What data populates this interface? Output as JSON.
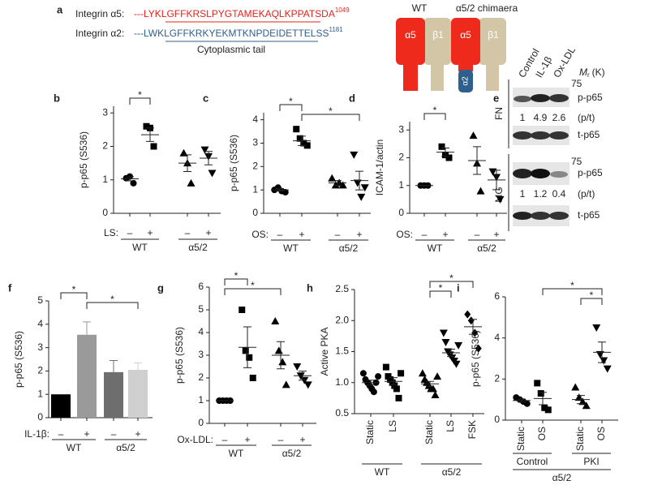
{
  "panel_a": {
    "letter": "a",
    "rows": [
      {
        "label": "Integrin α5:",
        "sequence": "---LYKLGFFKRSLPYGTAMEKAQLKPPATSDA",
        "position": 1049,
        "color": "#e3231b"
      },
      {
        "label": "Integrin α2:",
        "sequence": "---LWKLGFFKRKYEKMTKNPDEIDETTELSS",
        "position": 1181,
        "color": "#2e5f8f"
      }
    ],
    "tail_label": "Cytoplasmic tail",
    "diagrams": [
      {
        "title": "WT",
        "subunits": [
          "α5",
          "β1"
        ]
      },
      {
        "title": "α5/2 chimaera",
        "subunits": [
          "α5",
          "β1",
          "α2"
        ]
      }
    ]
  },
  "panel_e": {
    "letter": "e",
    "headers": [
      "Control",
      "IL-1β",
      "Ox-LDL"
    ],
    "mr": {
      "m": "M",
      "sub": "r",
      "unit": "(K)"
    },
    "sections": [
      {
        "label": "FN",
        "marker": 75,
        "top": "p-p65",
        "ratios": [
          1,
          4.9,
          2.6
        ],
        "ratio_label": "(p/t)",
        "bottom": "t-p65"
      },
      {
        "label": "MG",
        "marker": 75,
        "top": "p-p65",
        "ratios": [
          1,
          1.2,
          0.4
        ],
        "ratio_label": "(p/t)",
        "bottom": "t-p65"
      }
    ]
  },
  "chart_data": [
    {
      "panel": "b",
      "type": "scatter",
      "y_label": "p-p65 (S536)",
      "ylim": [
        0,
        3.2
      ],
      "yticks": [
        0,
        1,
        2,
        3
      ],
      "x_label": "LS:",
      "categories": [
        "–",
        "+",
        "–",
        "+"
      ],
      "groups": [
        {
          "label": "WT",
          "span": [
            0,
            1
          ]
        },
        {
          "label": "α5/2",
          "span": [
            2,
            3
          ]
        }
      ],
      "markers": [
        "circle",
        "square",
        "triangle",
        "triangle-down"
      ],
      "points": [
        [
          1.05,
          1.1,
          0.9
        ],
        [
          2.6,
          2.55,
          2.0
        ],
        [
          1.8,
          1.5,
          0.9
        ],
        [
          1.9,
          1.7,
          1.2
        ]
      ],
      "means": [
        1.03,
        2.35,
        1.5,
        1.65
      ],
      "errors": [
        0.06,
        0.2,
        0.25,
        0.2
      ],
      "significance": [
        {
          "pair": [
            0,
            1
          ],
          "label": "*"
        }
      ]
    },
    {
      "panel": "c",
      "type": "scatter",
      "y_label": "p-p65 (S536)",
      "ylim": [
        0,
        4.3
      ],
      "yticks": [
        0,
        1,
        2,
        3,
        4
      ],
      "x_label": "OS:",
      "categories": [
        "–",
        "+",
        "–",
        "+"
      ],
      "groups": [
        {
          "label": "WT",
          "span": [
            0,
            1
          ]
        },
        {
          "label": "α5/2",
          "span": [
            2,
            3
          ]
        }
      ],
      "markers": [
        "circle",
        "square",
        "triangle",
        "triangle-down"
      ],
      "points": [
        [
          1.0,
          1.1,
          0.95,
          0.9
        ],
        [
          3.6,
          3.2,
          3.0,
          2.9
        ],
        [
          1.5,
          1.2,
          1.3,
          1.2
        ],
        [
          2.5,
          1.3,
          0.7,
          1.1
        ]
      ],
      "means": [
        1.0,
        3.1,
        1.3,
        1.4
      ],
      "errors": [
        0.05,
        0.2,
        0.1,
        0.4
      ],
      "significance": [
        {
          "pair": [
            0,
            1
          ],
          "label": "*"
        },
        {
          "pair": [
            1,
            3
          ],
          "label": "*"
        }
      ]
    },
    {
      "panel": "d",
      "type": "scatter",
      "y_label": "ICAM-1/actin",
      "ylim": [
        0,
        3.3
      ],
      "yticks": [
        0,
        1,
        2,
        3
      ],
      "x_label": "OS:",
      "categories": [
        "–",
        "+",
        "–",
        "+"
      ],
      "groups": [
        {
          "label": "WT",
          "span": [
            0,
            1
          ]
        },
        {
          "label": "α5/2",
          "span": [
            2,
            3
          ]
        }
      ],
      "markers": [
        "circle",
        "square",
        "triangle",
        "triangle-down"
      ],
      "points": [
        [
          1,
          1,
          1
        ],
        [
          2.4,
          2.1,
          2.0
        ],
        [
          2.8,
          1.8,
          0.8
        ],
        [
          1.5,
          1.3,
          0.5
        ]
      ],
      "means": [
        1,
        2.2,
        1.9,
        1.2
      ],
      "errors": [
        0,
        0.15,
        0.5,
        0.35
      ],
      "significance": [
        {
          "pair": [
            0,
            1
          ],
          "label": "*"
        }
      ]
    },
    {
      "panel": "f",
      "type": "bar",
      "y_label": "p-p65 (S536)",
      "ylim": [
        0,
        5
      ],
      "yticks": [
        0,
        1,
        2,
        3,
        4,
        5
      ],
      "x_label": "IL-1β:",
      "categories": [
        "–",
        "+",
        "–",
        "+"
      ],
      "groups": [
        {
          "label": "WT",
          "span": [
            0,
            1
          ]
        },
        {
          "label": "α5/2",
          "span": [
            2,
            3
          ]
        }
      ],
      "colors": [
        "#000000",
        "#9a9a9a",
        "#6e6e6e",
        "#cfcfcf"
      ],
      "means": [
        1,
        3.55,
        1.95,
        2.05
      ],
      "errors": [
        0,
        0.55,
        0.5,
        0.3
      ],
      "significance": [
        {
          "pair": [
            0,
            1
          ],
          "label": "*"
        },
        {
          "pair": [
            1,
            3
          ],
          "label": "*"
        }
      ]
    },
    {
      "panel": "g",
      "type": "scatter",
      "y_label": "p-p65 (S536)",
      "ylim": [
        0,
        6
      ],
      "yticks": [
        0,
        1,
        2,
        3,
        4,
        5,
        6
      ],
      "x_label": "Ox-LDL:",
      "categories": [
        "–",
        "+",
        "–",
        "+"
      ],
      "groups": [
        {
          "label": "WT",
          "span": [
            0,
            1
          ]
        },
        {
          "label": "α5/2",
          "span": [
            2,
            3
          ]
        }
      ],
      "markers": [
        "circle",
        "square",
        "triangle",
        "triangle-down"
      ],
      "points": [
        [
          1,
          1,
          1,
          1
        ],
        [
          5.0,
          3.2,
          2.9,
          2.0
        ],
        [
          4.5,
          3.2,
          2.7,
          1.7
        ],
        [
          2.5,
          2.1,
          1.9,
          1.7
        ]
      ],
      "means": [
        1,
        3.35,
        3.0,
        2.1
      ],
      "errors": [
        0,
        0.9,
        0.6,
        0.2
      ],
      "significance": [
        {
          "pair": [
            0,
            1
          ],
          "label": "*"
        },
        {
          "pair": [
            0,
            2
          ],
          "label": "*"
        }
      ]
    },
    {
      "panel": "h",
      "type": "scatter",
      "y_label": "Active PKA",
      "ylim": [
        0.5,
        2.5
      ],
      "yticks": [
        0.5,
        {
          "value": 1,
          "label": "1.0"
        },
        1.5,
        {
          "value": 2,
          "label": "2.0"
        },
        2.5
      ],
      "categories": [
        "Static",
        "LS",
        "Static",
        "LS",
        "FSK"
      ],
      "groups": [
        {
          "label": "WT",
          "span": [
            0,
            1
          ]
        },
        {
          "label": "α5/2",
          "span": [
            2,
            4
          ]
        }
      ],
      "markers": [
        "circle",
        "square",
        "triangle",
        "triangle-down",
        "diamond"
      ],
      "points": [
        [
          1.15,
          1.05,
          1.0,
          0.95,
          0.9,
          0.85,
          1.0,
          1.1
        ],
        [
          1.25,
          1.1,
          1.05,
          1.0,
          0.95,
          0.9,
          0.75,
          1.15
        ],
        [
          1.15,
          1.05,
          1.0,
          0.95,
          0.9,
          0.9,
          0.8,
          1.1
        ],
        [
          1.8,
          1.65,
          1.5,
          1.45,
          1.4,
          1.35,
          1.3,
          1.6
        ],
        [
          2.1,
          2.0,
          1.8,
          1.55
        ]
      ],
      "means": [
        1.0,
        1.02,
        0.98,
        1.48,
        1.9
      ],
      "errors": [
        0.04,
        0.06,
        0.04,
        0.06,
        0.12
      ],
      "significance": [
        {
          "pair": [
            2,
            4
          ],
          "label": "*"
        },
        {
          "pair": [
            2,
            3
          ],
          "label": "*"
        }
      ]
    },
    {
      "panel": "i",
      "type": "scatter",
      "y_label": "p-p65 (S536)",
      "ylim": [
        0,
        6
      ],
      "yticks": [
        0,
        2,
        4,
        6
      ],
      "categories": [
        "Static",
        "OS",
        "Static",
        "OS"
      ],
      "groups": [
        {
          "label": "Control",
          "span": [
            0,
            1
          ]
        },
        {
          "label": "PKI",
          "span": [
            2,
            3
          ]
        }
      ],
      "supergroups": [
        {
          "label": "α5/2",
          "span": [
            0,
            3
          ]
        }
      ],
      "markers": [
        "circle",
        "square",
        "triangle",
        "triangle-down"
      ],
      "points": [
        [
          1.1,
          1.0,
          0.9,
          0.8
        ],
        [
          1.8,
          1.3,
          0.6,
          0.5
        ],
        [
          1.6,
          1.1,
          0.9,
          0.7
        ],
        [
          4.5,
          3.2,
          2.9,
          2.5
        ]
      ],
      "means": [
        0.95,
        1.05,
        1.0,
        3.3
      ],
      "errors": [
        0.07,
        0.3,
        0.2,
        0.5
      ],
      "significance": [
        {
          "pair": [
            1,
            3
          ],
          "label": "*"
        },
        {
          "pair": [
            2,
            3
          ],
          "label": "*"
        }
      ]
    }
  ]
}
